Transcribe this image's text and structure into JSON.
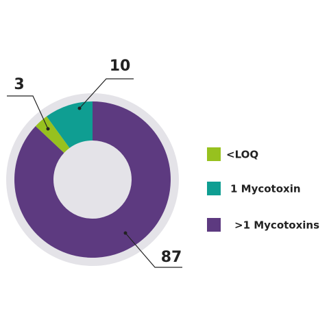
{
  "chart_data": {
    "type": "donut",
    "categories": [
      "<LOQ",
      "1 Mycotoxin",
      ">1 Mycotoxins"
    ],
    "values": [
      3,
      10,
      87
    ],
    "colors": [
      "#97c11f",
      "#0f9e92",
      "#5d3a80"
    ],
    "legend": "right"
  }
}
